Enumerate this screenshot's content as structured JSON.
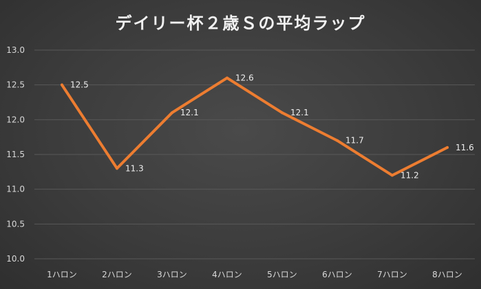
{
  "chart_data": {
    "type": "line",
    "title": "デイリー杯２歳Ｓの平均ラップ",
    "xlabel": "",
    "ylabel": "",
    "categories": [
      "1ハロン",
      "2ハロン",
      "3ハロン",
      "4ハロン",
      "5ハロン",
      "6ハロン",
      "7ハロン",
      "8ハロン"
    ],
    "series": [
      {
        "values": [
          12.5,
          11.3,
          12.1,
          12.6,
          12.1,
          11.7,
          11.2,
          11.6
        ],
        "labels": [
          "12.5",
          "11.3",
          "12.1",
          "12.6",
          "12.1",
          "11.7",
          "11.2",
          "11.6"
        ],
        "color": "#ed7d31"
      }
    ],
    "ylim": [
      10.0,
      13.0
    ],
    "yticks": [
      "10.0",
      "10.5",
      "11.0",
      "11.5",
      "12.0",
      "12.5",
      "13.0"
    ],
    "grid": true,
    "legend": "none"
  },
  "colors": {
    "background": "#3a3a3a",
    "gridline": "#595959",
    "line": "#ed7d31",
    "text": "#d9d9d9"
  }
}
